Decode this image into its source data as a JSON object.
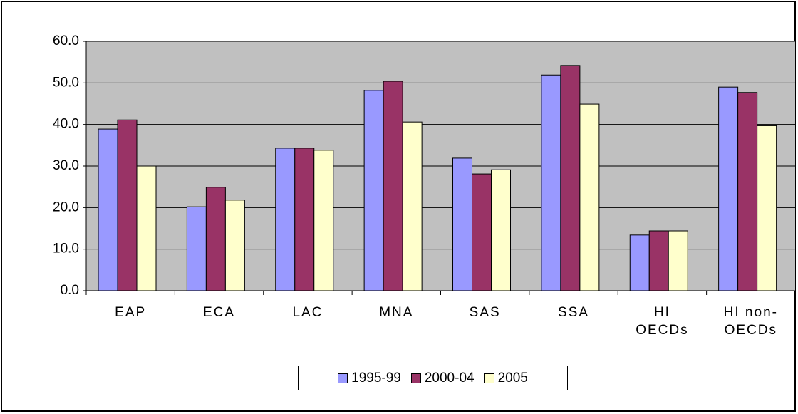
{
  "chart_data": {
    "type": "bar",
    "categories": [
      "EAP",
      "ECA",
      "LAC",
      "MNA",
      "SAS",
      "SSA",
      "HI OECDs",
      "HI non-OECDs"
    ],
    "series": [
      {
        "name": "1995-99",
        "color": "#9999ff",
        "values": [
          38.9,
          20.2,
          34.3,
          48.2,
          31.9,
          51.9,
          13.4,
          49.0
        ]
      },
      {
        "name": "2000-04",
        "color": "#993366",
        "values": [
          41.1,
          24.9,
          34.3,
          50.4,
          28.1,
          54.2,
          14.4,
          47.7
        ]
      },
      {
        "name": "2005",
        "color": "#ffffcc",
        "values": [
          30.0,
          21.8,
          33.8,
          40.6,
          29.1,
          44.9,
          14.4,
          39.7
        ]
      }
    ],
    "ylim": [
      0,
      60
    ],
    "yticks": [
      {
        "value": 0,
        "label": "0.0"
      },
      {
        "value": 10,
        "label": "10.0"
      },
      {
        "value": 20,
        "label": "20.0"
      },
      {
        "value": 30,
        "label": "30.0"
      },
      {
        "value": 40,
        "label": "40.0"
      },
      {
        "value": 50,
        "label": "50.0"
      },
      {
        "value": 60,
        "label": "60.0"
      }
    ],
    "grid": true,
    "plot_background": "#c0c0c0",
    "legend": "bottom"
  }
}
